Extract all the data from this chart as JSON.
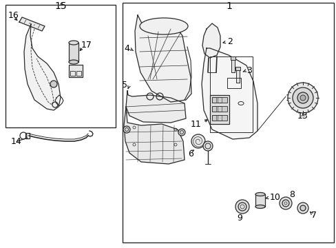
{
  "bg_color": "#ffffff",
  "line_color": "#2a2a2a",
  "text_color": "#000000",
  "fs": 8,
  "lw": 0.9
}
